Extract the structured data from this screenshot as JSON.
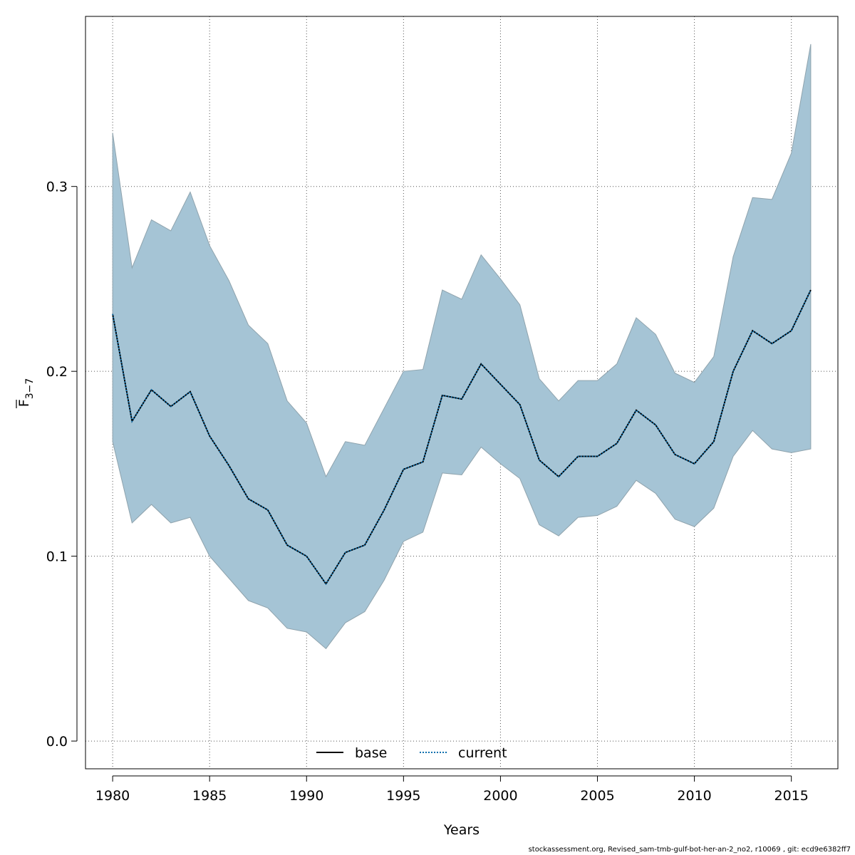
{
  "chart_data": {
    "type": "line",
    "xlabel": "Years",
    "ylabel": {
      "base": "F",
      "subscript": "3−7",
      "overline": true
    },
    "xlim": [
      1978.6,
      2017.4
    ],
    "ylim": [
      -0.015,
      0.392
    ],
    "x_ticks": [
      1980,
      1985,
      1990,
      1995,
      2000,
      2005,
      2010,
      2015
    ],
    "x_tick_labels": [
      "1980",
      "1985",
      "1990",
      "1995",
      "2000",
      "2005",
      "2010",
      "2015"
    ],
    "y_ticks": [
      0.0,
      0.1,
      0.2,
      0.3
    ],
    "y_tick_labels": [
      "0.0",
      "0.1",
      "0.2",
      "0.3"
    ],
    "grid": true,
    "legend_position": "bottom-center",
    "x": [
      1980,
      1981,
      1982,
      1983,
      1984,
      1985,
      1986,
      1987,
      1988,
      1989,
      1990,
      1991,
      1992,
      1993,
      1994,
      1995,
      1996,
      1997,
      1998,
      1999,
      2000,
      2001,
      2002,
      2003,
      2004,
      2005,
      2006,
      2007,
      2008,
      2009,
      2010,
      2011,
      2012,
      2013,
      2014,
      2015,
      2016
    ],
    "band": {
      "color": "#a5c4d5",
      "edge_color": "#8fa3ad",
      "upper": [
        0.329,
        0.256,
        0.282,
        0.276,
        0.297,
        0.268,
        0.249,
        0.225,
        0.215,
        0.184,
        0.172,
        0.143,
        0.162,
        0.16,
        0.18,
        0.2,
        0.201,
        0.244,
        0.239,
        0.263,
        0.25,
        0.236,
        0.196,
        0.184,
        0.195,
        0.195,
        0.204,
        0.229,
        0.22,
        0.199,
        0.194,
        0.208,
        0.262,
        0.294,
        0.293,
        0.318,
        0.377
      ],
      "lower": [
        0.162,
        0.118,
        0.128,
        0.118,
        0.121,
        0.1,
        0.088,
        0.076,
        0.072,
        0.061,
        0.059,
        0.05,
        0.064,
        0.07,
        0.087,
        0.108,
        0.113,
        0.145,
        0.144,
        0.159,
        0.15,
        0.142,
        0.117,
        0.111,
        0.121,
        0.122,
        0.127,
        0.141,
        0.134,
        0.12,
        0.116,
        0.126,
        0.154,
        0.168,
        0.158,
        0.156,
        0.158
      ]
    },
    "series": [
      {
        "name": "base",
        "color": "#000000",
        "dash": "solid",
        "values": [
          0.231,
          0.173,
          0.19,
          0.181,
          0.189,
          0.165,
          0.149,
          0.131,
          0.125,
          0.106,
          0.1,
          0.085,
          0.102,
          0.106,
          0.125,
          0.147,
          0.151,
          0.187,
          0.185,
          0.204,
          0.193,
          0.182,
          0.152,
          0.143,
          0.154,
          0.154,
          0.161,
          0.179,
          0.171,
          0.155,
          0.15,
          0.162,
          0.2,
          0.222,
          0.215,
          0.222,
          0.244
        ]
      },
      {
        "name": "current",
        "color": "#0a6fae",
        "dash": "dotted",
        "values": [
          0.231,
          0.173,
          0.19,
          0.181,
          0.189,
          0.165,
          0.149,
          0.131,
          0.125,
          0.106,
          0.1,
          0.085,
          0.102,
          0.106,
          0.125,
          0.147,
          0.151,
          0.187,
          0.185,
          0.204,
          0.193,
          0.182,
          0.152,
          0.143,
          0.154,
          0.154,
          0.161,
          0.179,
          0.171,
          0.155,
          0.15,
          0.162,
          0.2,
          0.222,
          0.215,
          0.222,
          0.244
        ]
      }
    ]
  },
  "footer_text": "stockassessment.org, Revised_sam-tmb-gulf-bot-her-an-2_no2, r10069 , git: ecd9e6382ff7"
}
